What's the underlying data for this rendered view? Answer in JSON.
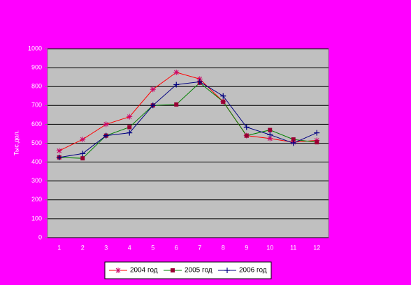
{
  "chart_data": {
    "type": "line",
    "y_label": "Тыс.дол.",
    "categories": [
      "1",
      "2",
      "3",
      "4",
      "5",
      "6",
      "7",
      "8",
      "9",
      "10",
      "11",
      "12"
    ],
    "series": [
      {
        "name": "2004 год",
        "color": "#ff0000",
        "marker": "star",
        "values": [
          460,
          520,
          600,
          640,
          785,
          875,
          840,
          720,
          540,
          525,
          505,
          515
        ]
      },
      {
        "name": "2005 год",
        "color": "#008000",
        "marker": "square",
        "values": [
          425,
          420,
          540,
          585,
          700,
          705,
          820,
          720,
          540,
          570,
          520,
          505
        ]
      },
      {
        "name": "2006 год",
        "color": "#000080",
        "marker": "plus",
        "values": [
          425,
          445,
          540,
          555,
          700,
          810,
          825,
          750,
          585,
          545,
          500,
          555
        ]
      }
    ],
    "ylim": [
      0,
      1000
    ],
    "yticks": [
      0,
      100,
      200,
      300,
      400,
      500,
      600,
      700,
      800,
      900,
      1000
    ],
    "grid": true
  }
}
